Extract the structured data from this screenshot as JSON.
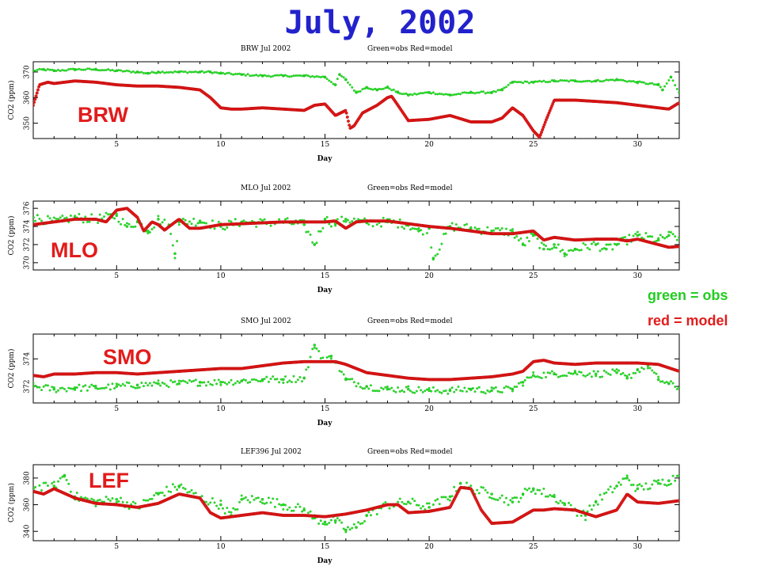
{
  "page": {
    "title": "July, 2002",
    "legend": {
      "obs": "green = obs",
      "model": "red = model"
    }
  },
  "colors": {
    "obs": "#22e622",
    "model": "#e21b1b",
    "title": "#2222cc",
    "station": "#e21b1b",
    "axis": "#000000"
  },
  "chart_data": [
    {
      "type": "scatter",
      "title": "BRW Jul 2002",
      "caption": "Green=obs Red=model",
      "station_label": "BRW",
      "xlabel": "Day",
      "ylabel": "CO2 (ppm)",
      "xlim": [
        1,
        32
      ],
      "ylim": [
        344,
        374
      ],
      "xticks": [
        5,
        10,
        15,
        20,
        25,
        30
      ],
      "xtick_labels": [
        "5",
        "10",
        "15",
        "20",
        "25",
        "30"
      ],
      "yticks": [
        350,
        360,
        370
      ],
      "ytick_labels": [
        "350",
        "360",
        "370"
      ],
      "series": [
        {
          "name": "obs",
          "style": "points",
          "jitter": 0.35,
          "x": [
            1,
            1.5,
            2,
            3,
            4,
            5,
            6,
            6.5,
            7,
            8,
            9,
            9.5,
            10,
            11,
            12,
            13,
            14,
            15,
            15.5,
            15.7,
            16,
            16.5,
            17,
            17.5,
            18,
            18.5,
            19,
            20,
            21,
            22,
            23,
            23.5,
            24,
            25,
            26,
            27,
            28,
            29,
            30,
            31,
            31.2,
            31.6,
            32
          ],
          "y": [
            370.5,
            371,
            370.5,
            371,
            371,
            370.5,
            370,
            369.5,
            370,
            370,
            370,
            370,
            369.5,
            369,
            368.5,
            368.5,
            368.5,
            368,
            365,
            369,
            367,
            362,
            364,
            363,
            364,
            362,
            361,
            362,
            361,
            362,
            362,
            363,
            366,
            366,
            366.5,
            366.5,
            366.5,
            367,
            366,
            365,
            363,
            368,
            362
          ]
        },
        {
          "name": "model",
          "style": "dense",
          "x": [
            1,
            1.3,
            1.7,
            2,
            3,
            4,
            5,
            6,
            7,
            8,
            9,
            9.5,
            10,
            10.5,
            11,
            12,
            13,
            14,
            14.5,
            15,
            15.5,
            16,
            16.2,
            16.4,
            16.8,
            17.5,
            18,
            18.2,
            18.5,
            19,
            20,
            21,
            22,
            23,
            23.5,
            24,
            24.5,
            25,
            25.3,
            25.6,
            26,
            27,
            28,
            29,
            30,
            31,
            31.5,
            32
          ],
          "y": [
            357,
            365,
            366,
            365.5,
            366.5,
            366,
            365,
            364.5,
            364.5,
            364,
            363,
            360,
            356,
            355.5,
            355.5,
            356,
            355.5,
            355,
            357,
            357.5,
            353,
            355,
            348,
            349,
            354,
            357,
            360,
            360.5,
            357,
            351,
            351.5,
            353,
            350.5,
            350.5,
            352,
            356,
            353,
            347,
            344.5,
            351,
            359,
            359,
            358.5,
            358,
            357,
            356,
            355.5,
            358
          ]
        }
      ]
    },
    {
      "type": "scatter",
      "title": "MLO Jul 2002",
      "caption": "Green=obs Red=model",
      "station_label": "MLO",
      "xlabel": "Day",
      "ylabel": "CO2 (ppm)",
      "xlim": [
        1,
        32
      ],
      "ylim": [
        369.2,
        376.8
      ],
      "xticks": [
        5,
        10,
        15,
        20,
        25,
        30
      ],
      "xtick_labels": [
        "5",
        "10",
        "15",
        "20",
        "25",
        "30"
      ],
      "yticks": [
        370,
        372,
        374,
        376
      ],
      "ytick_labels": [
        "370",
        "372",
        "374",
        "376"
      ],
      "series": [
        {
          "name": "obs",
          "style": "points",
          "jitter": 0.5,
          "x": [
            1,
            2,
            3,
            4,
            5,
            5.5,
            6,
            6.5,
            7,
            7.5,
            7.8,
            8,
            9,
            10,
            11,
            12,
            13,
            14,
            14.5,
            15,
            15.5,
            16,
            17,
            18,
            19,
            19.5,
            20,
            20.2,
            21,
            22,
            23,
            24,
            24.5,
            25,
            25.5,
            26,
            26.5,
            27,
            28,
            28.5,
            29,
            29.5,
            30,
            31,
            31.5,
            32
          ],
          "y": [
            375,
            374.5,
            375,
            374.8,
            375.2,
            374,
            374.5,
            373.5,
            374.8,
            374,
            371,
            374.5,
            374.6,
            374,
            374.5,
            374.4,
            374.5,
            374.2,
            372,
            374.8,
            374.3,
            374.8,
            374.4,
            374.5,
            374.2,
            373.5,
            373.8,
            370.5,
            374,
            373.8,
            373.5,
            373.4,
            372,
            373,
            371.5,
            372,
            371,
            371.5,
            372,
            371.5,
            372,
            372.5,
            373,
            372.5,
            373,
            372.8
          ]
        },
        {
          "name": "model",
          "style": "dense",
          "x": [
            1,
            2,
            3,
            4,
            4.5,
            5,
            5.5,
            6,
            6.3,
            6.7,
            7,
            7.3,
            7.7,
            8,
            8.5,
            9,
            10,
            11,
            12,
            13,
            14,
            15,
            15.5,
            16,
            16.5,
            17,
            18,
            19,
            20,
            21,
            22,
            23,
            24,
            25,
            25.5,
            26,
            27,
            28,
            29,
            29.5,
            30,
            31,
            31.5,
            32
          ],
          "y": [
            374.2,
            374.5,
            374.8,
            374.8,
            374.5,
            375.8,
            376,
            375,
            373.5,
            374.5,
            374.2,
            373.6,
            374.3,
            374.8,
            373.8,
            373.8,
            374.2,
            374.3,
            374.4,
            374.5,
            374.5,
            374.5,
            374.6,
            373.8,
            374.5,
            374.6,
            374.6,
            374.3,
            374,
            373.8,
            373.5,
            373.2,
            373.2,
            373.5,
            372.5,
            372.8,
            372.5,
            372.6,
            372.6,
            372.4,
            372.6,
            372,
            371.7,
            371.8
          ]
        }
      ]
    },
    {
      "type": "scatter",
      "title": "SMO Jul 2002",
      "caption": "Green=obs Red=model",
      "station_label": "SMO",
      "xlabel": "Day",
      "ylabel": "CO2 (ppm)",
      "xlim": [
        1,
        32
      ],
      "ylim": [
        370.8,
        375.8
      ],
      "xticks": [
        5,
        10,
        15,
        20,
        25,
        30
      ],
      "xtick_labels": [
        "5",
        "10",
        "15",
        "20",
        "25",
        "30"
      ],
      "yticks": [
        372,
        374
      ],
      "ytick_labels": [
        "372",
        "374"
      ],
      "series": [
        {
          "name": "obs",
          "style": "points",
          "jitter": 0.25,
          "x": [
            1,
            2,
            3,
            4,
            5,
            6,
            7,
            8,
            9,
            10,
            11,
            12,
            13,
            14,
            14.5,
            15,
            15.3,
            15.5,
            16,
            17,
            18,
            19,
            20,
            21,
            22,
            23,
            24,
            24.5,
            25,
            26,
            27,
            28,
            29,
            29.5,
            30,
            30.5,
            31,
            31.5,
            32
          ],
          "y": [
            372,
            371.8,
            371.9,
            371.9,
            372,
            372.1,
            372.2,
            372.2,
            372.3,
            372.3,
            372.4,
            372.5,
            372.5,
            372.6,
            375,
            373.8,
            374.2,
            373.8,
            372.5,
            372,
            371.8,
            371.8,
            371.7,
            371.7,
            371.8,
            371.7,
            371.8,
            372.3,
            372.8,
            372.9,
            373,
            372.9,
            373,
            372.6,
            373.2,
            373.5,
            372.5,
            372.2,
            371.9
          ]
        },
        {
          "name": "model",
          "style": "dense",
          "x": [
            1,
            1.5,
            2,
            3,
            4,
            5,
            6,
            7,
            8,
            9,
            10,
            11,
            12,
            13,
            14,
            15,
            15.5,
            16,
            17,
            18,
            19,
            20,
            21,
            22,
            23,
            24,
            24.5,
            25,
            25.5,
            26,
            27,
            28,
            29,
            30,
            31,
            32
          ],
          "y": [
            372.8,
            372.7,
            372.9,
            372.9,
            373,
            373,
            372.9,
            373,
            373.1,
            373.2,
            373.3,
            373.3,
            373.5,
            373.7,
            373.8,
            373.8,
            373.8,
            373.6,
            373,
            372.8,
            372.6,
            372.5,
            372.5,
            372.6,
            372.7,
            372.9,
            373.1,
            373.8,
            373.9,
            373.7,
            373.6,
            373.7,
            373.7,
            373.7,
            373.6,
            373.1
          ]
        }
      ]
    },
    {
      "type": "scatter",
      "title": "LEF396 Jul 2002",
      "caption": "Green=obs Red=model",
      "station_label": "LEF",
      "xlabel": "Day",
      "ylabel": "CO2 (ppm)",
      "xlim": [
        1,
        32
      ],
      "ylim": [
        333,
        390
      ],
      "xticks": [
        5,
        10,
        15,
        20,
        25,
        30
      ],
      "xtick_labels": [
        "5",
        "10",
        "15",
        "20",
        "25",
        "30"
      ],
      "yticks": [
        340,
        360,
        380
      ],
      "ytick_labels": [
        "340",
        "360",
        "380"
      ],
      "series": [
        {
          "name": "obs",
          "style": "points",
          "jitter": 3.5,
          "x": [
            1,
            2,
            2.5,
            3,
            4,
            5,
            6,
            7,
            8,
            9,
            10,
            10.5,
            11,
            12,
            13,
            14,
            14.5,
            15,
            15.5,
            16,
            16.5,
            17,
            18,
            19,
            20,
            21,
            21.5,
            22,
            23,
            24,
            24.5,
            25,
            26,
            26.5,
            27,
            27.5,
            28,
            29,
            29.5,
            30,
            31,
            31.5,
            32
          ],
          "y": [
            372,
            374,
            382,
            366,
            362,
            364,
            358,
            368,
            374,
            365,
            360,
            352,
            364,
            364,
            360,
            356,
            350,
            347,
            348,
            341,
            343,
            352,
            360,
            362,
            358,
            366,
            376,
            372,
            368,
            362,
            368,
            372,
            366,
            360,
            356,
            352,
            362,
            374,
            380,
            372,
            376,
            378,
            382
          ]
        },
        {
          "name": "model",
          "style": "dense",
          "x": [
            1,
            1.5,
            2,
            3,
            4,
            5,
            6,
            7,
            8,
            9,
            9.5,
            10,
            11,
            12,
            13,
            14,
            15,
            16,
            17,
            18,
            18.5,
            19,
            20,
            21,
            21.5,
            22,
            22.5,
            23,
            24,
            25,
            25.5,
            26,
            27,
            28,
            29,
            29.5,
            30,
            31,
            32
          ],
          "y": [
            370,
            368,
            372,
            365,
            361,
            360,
            358,
            361,
            368,
            365,
            354,
            350,
            352,
            354,
            352,
            352,
            351,
            353,
            356,
            360,
            360,
            354,
            355,
            358,
            373,
            372,
            356,
            346,
            347,
            356,
            356,
            357,
            356,
            351,
            356,
            368,
            362,
            361,
            363
          ]
        }
      ]
    }
  ]
}
